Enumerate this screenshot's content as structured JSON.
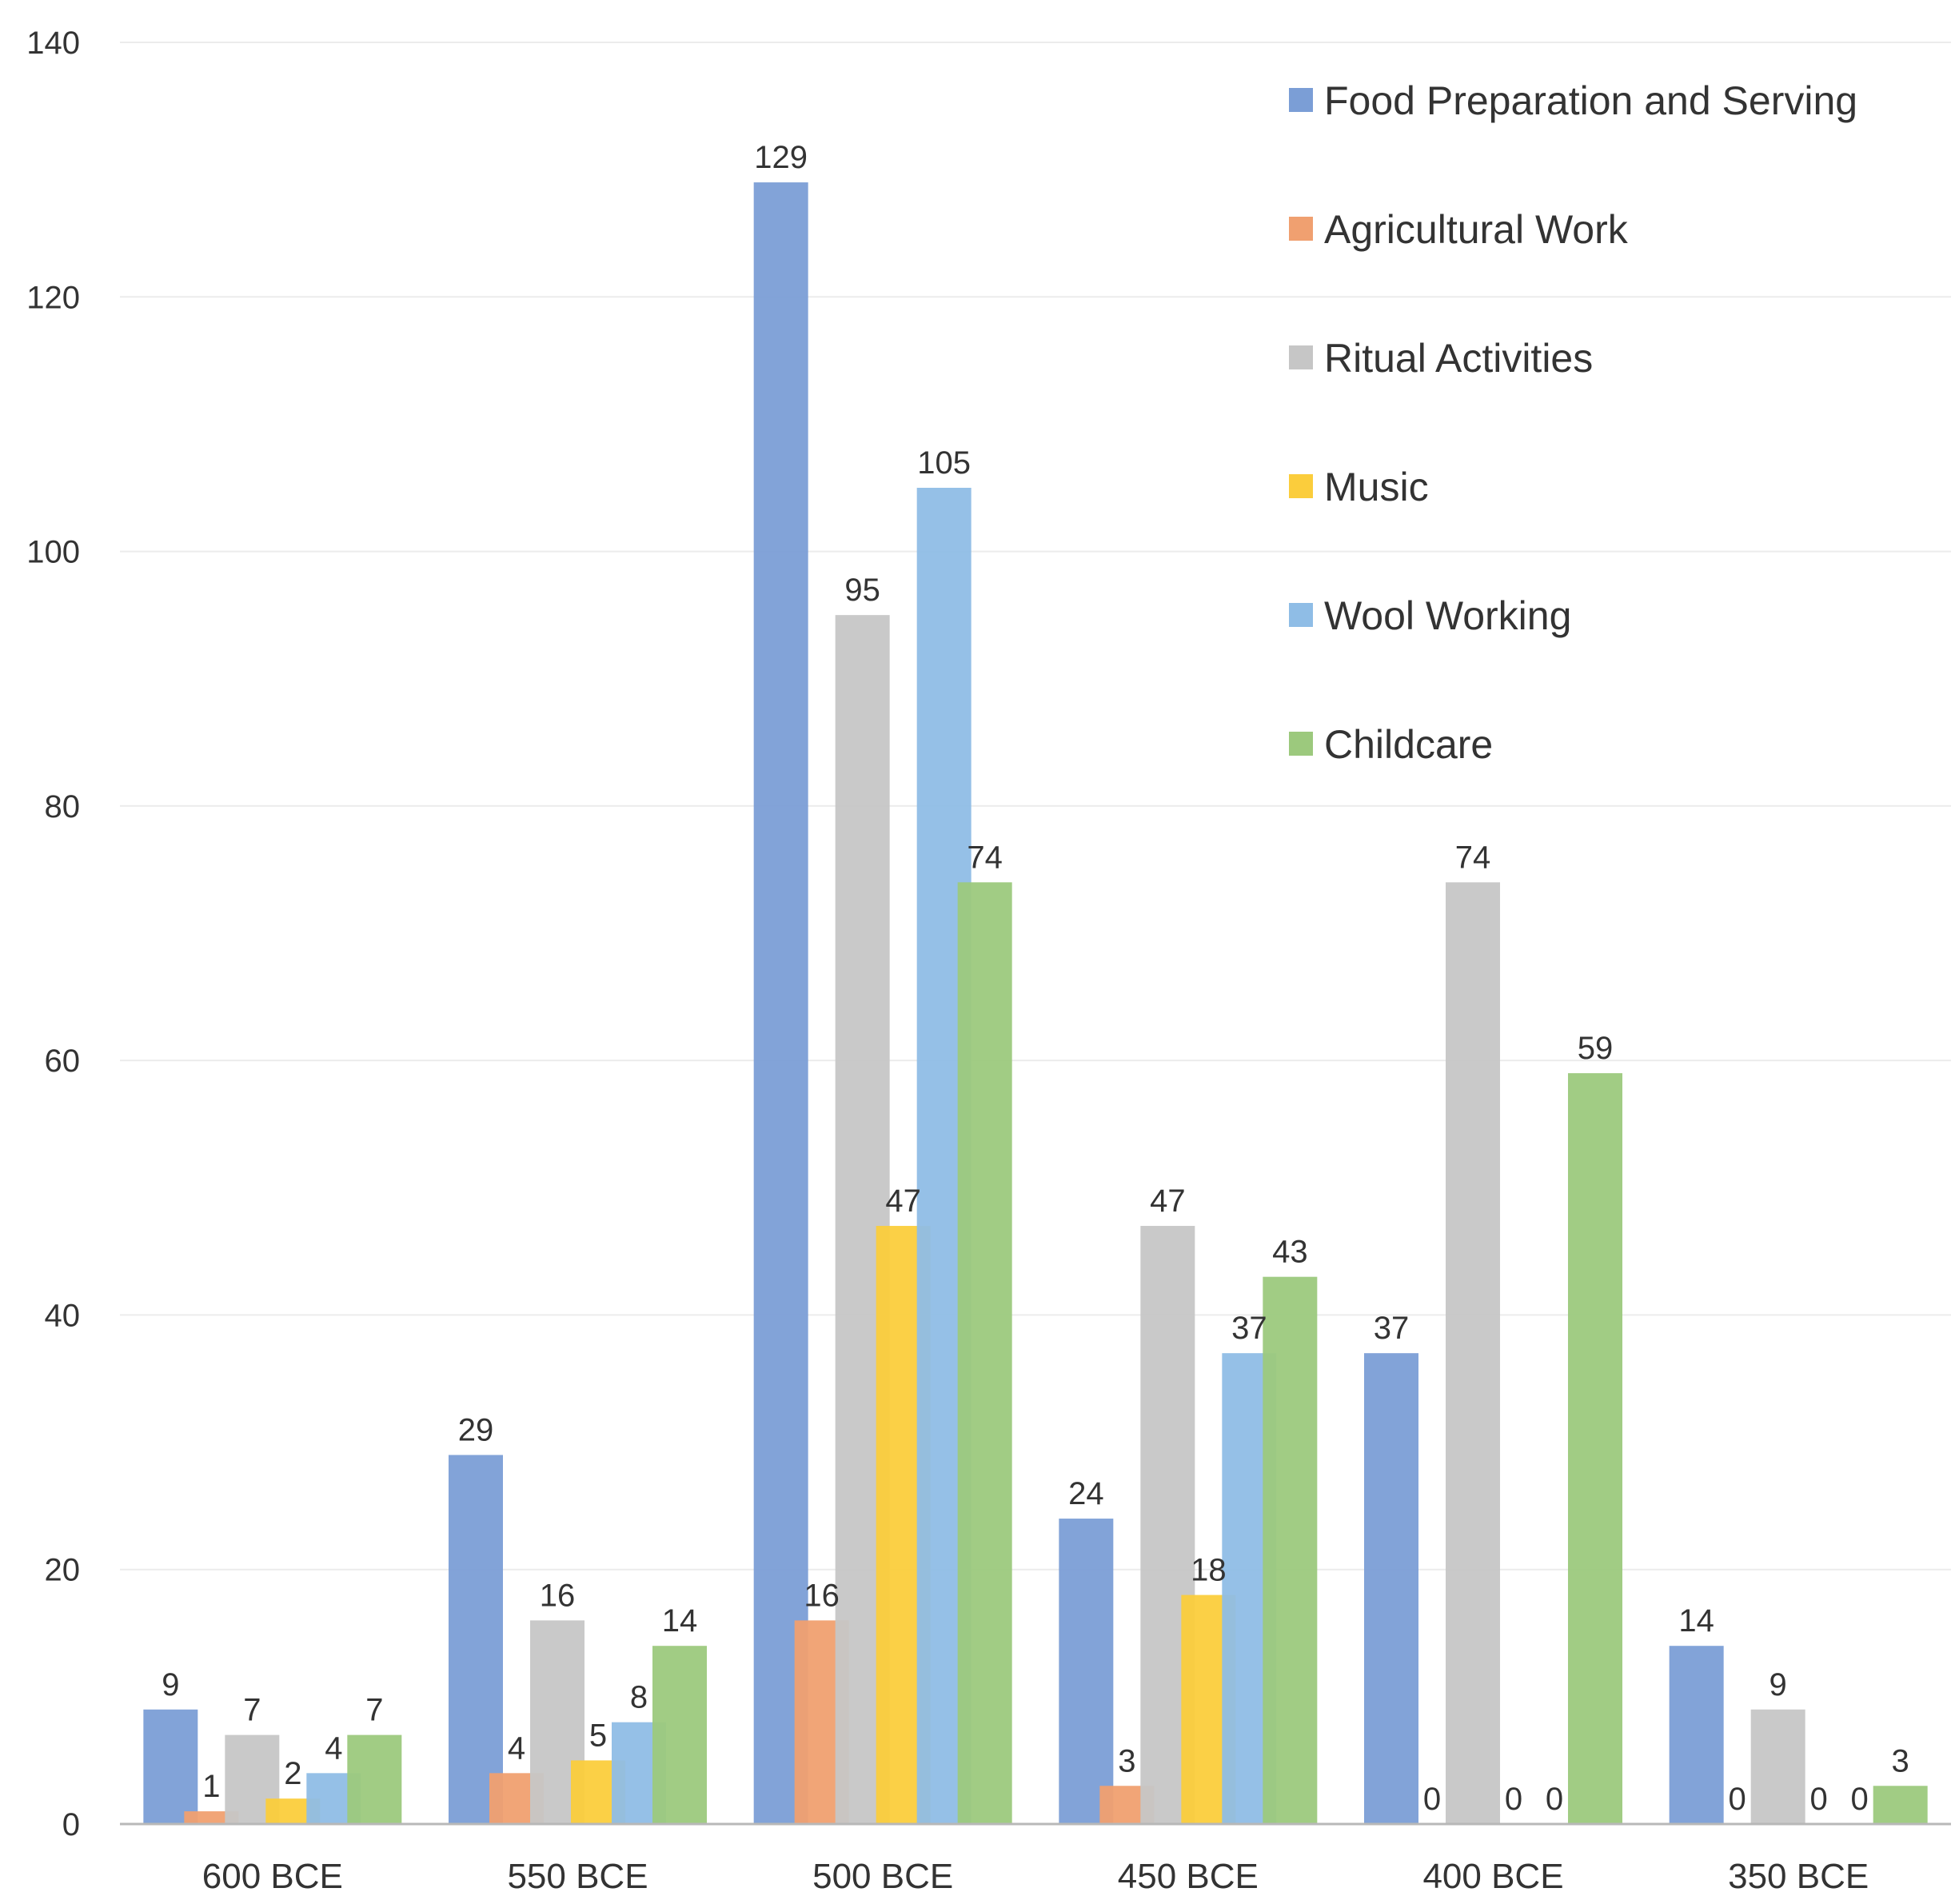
{
  "chart_data": {
    "type": "bar",
    "title": "",
    "xlabel": "",
    "ylabel": "",
    "ylim": [
      0,
      140
    ],
    "yticks": [
      0,
      20,
      40,
      60,
      80,
      100,
      120,
      140
    ],
    "grid": true,
    "legend_position": "top-right",
    "categories": [
      "600 BCE",
      "550 BCE",
      "500 BCE",
      "450 BCE",
      "400 BCE",
      "350 BCE"
    ],
    "series": [
      {
        "name": "Food Preparation and Serving",
        "color": "#7b9ed6",
        "values": [
          9,
          29,
          129,
          24,
          37,
          14
        ]
      },
      {
        "name": "Agricultural Work",
        "color": "#f0a070",
        "values": [
          1,
          4,
          16,
          3,
          0,
          0
        ]
      },
      {
        "name": "Ritual Activities",
        "color": "#c6c6c6",
        "values": [
          7,
          16,
          95,
          47,
          74,
          9
        ]
      },
      {
        "name": "Music",
        "color": "#fbcd3c",
        "values": [
          2,
          5,
          47,
          18,
          0,
          0
        ]
      },
      {
        "name": "Wool Working",
        "color": "#8fbde6",
        "values": [
          4,
          8,
          105,
          37,
          0,
          0
        ]
      },
      {
        "name": "Childcare",
        "color": "#9cc97d",
        "values": [
          7,
          14,
          74,
          43,
          59,
          3
        ]
      }
    ]
  }
}
